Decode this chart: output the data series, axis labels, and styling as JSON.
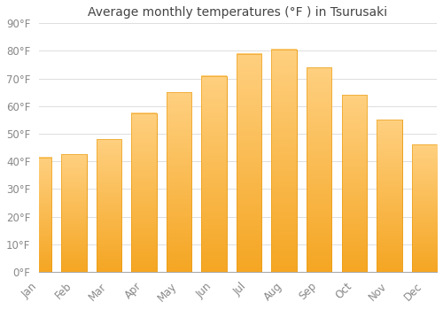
{
  "title": "Average monthly temperatures (°F ) in Tsurusaki",
  "months": [
    "Jan",
    "Feb",
    "Mar",
    "Apr",
    "May",
    "Jun",
    "Jul",
    "Aug",
    "Sep",
    "Oct",
    "Nov",
    "Dec"
  ],
  "values": [
    41.5,
    42.5,
    48,
    57.5,
    65,
    71,
    79,
    80.5,
    74,
    64,
    55,
    46
  ],
  "bar_color_bottom": "#F5A623",
  "bar_color_top": "#FFD080",
  "bar_edge_color": "#E8980A",
  "background_color": "#FFFFFF",
  "grid_color": "#DDDDDD",
  "ylim": [
    0,
    90
  ],
  "yticks": [
    0,
    10,
    20,
    30,
    40,
    50,
    60,
    70,
    80,
    90
  ],
  "title_fontsize": 10,
  "tick_fontsize": 8.5,
  "title_color": "#444444",
  "tick_color": "#888888",
  "bar_width": 0.72
}
